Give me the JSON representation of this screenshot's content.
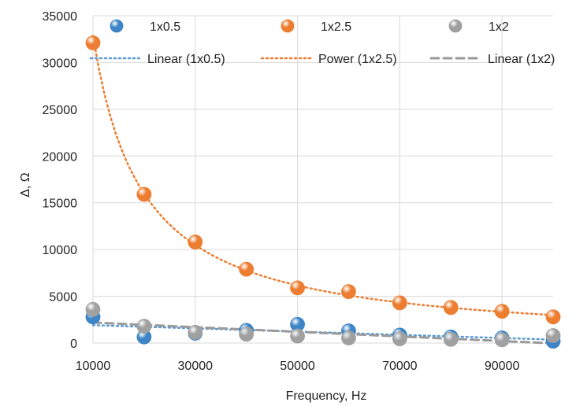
{
  "chart_data": {
    "type": "scatter",
    "title": "",
    "xlabel": "Frequency, Hz",
    "ylabel": "Δ, Ω",
    "xlim": [
      10000,
      100000
    ],
    "ylim": [
      0,
      35000
    ],
    "x_ticks": [
      10000,
      30000,
      50000,
      70000,
      90000
    ],
    "y_ticks": [
      0,
      5000,
      10000,
      15000,
      20000,
      25000,
      30000,
      35000
    ],
    "grid": true,
    "legend_position": "top",
    "x": [
      10000,
      20000,
      30000,
      40000,
      50000,
      60000,
      70000,
      80000,
      90000,
      100000
    ],
    "series": [
      {
        "name": "1x0.5",
        "color": "#3d85c6",
        "values": [
          2800,
          650,
          1050,
          1350,
          2000,
          1300,
          850,
          650,
          550,
          200
        ]
      },
      {
        "name": "1x2.5",
        "color": "#ed7d31",
        "values": [
          32100,
          15900,
          10800,
          7900,
          5900,
          5500,
          4300,
          3800,
          3400,
          2800
        ]
      },
      {
        "name": "1x2",
        "color": "#a0a0a0",
        "values": [
          3600,
          1800,
          1150,
          950,
          750,
          550,
          450,
          400,
          350,
          800
        ]
      }
    ],
    "trendlines": [
      {
        "name": "Linear (1x0.5)",
        "series": "1x0.5",
        "kind": "linear",
        "color": "#5b9bd5",
        "dash": "dotted"
      },
      {
        "name": "Power (1x2.5)",
        "series": "1x2.5",
        "kind": "power",
        "color": "#ed7d31",
        "dash": "dotted"
      },
      {
        "name": "Linear (1x2)",
        "series": "1x2",
        "kind": "linear",
        "color": "#9a9a9a",
        "dash": "dashed"
      }
    ]
  }
}
